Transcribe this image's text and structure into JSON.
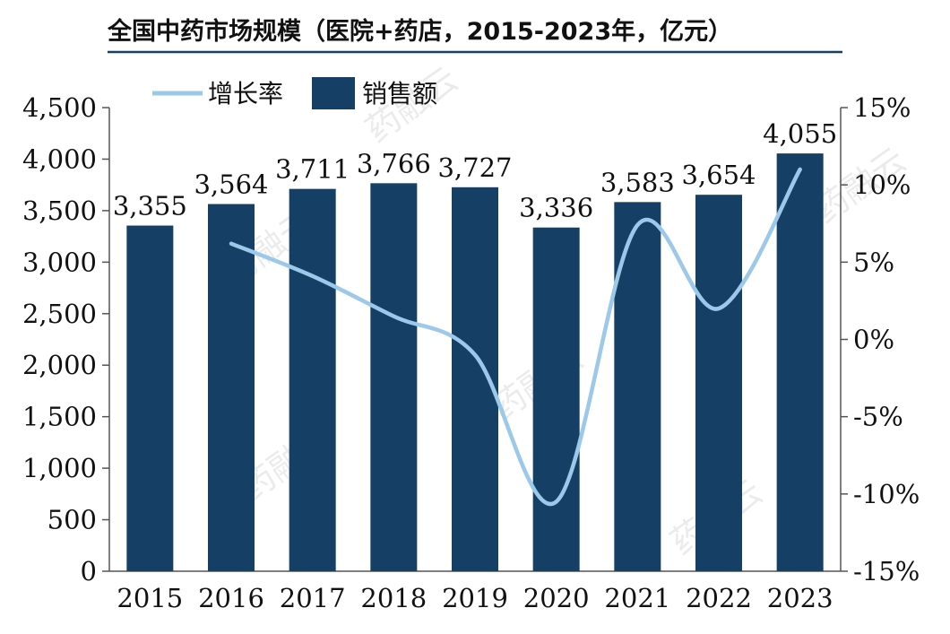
{
  "chart_data": {
    "type": "bar",
    "title": "全国中药市场规模（医院+药店，2015-2023年，亿元）",
    "categories": [
      "2015",
      "2016",
      "2017",
      "2018",
      "2019",
      "2020",
      "2021",
      "2022",
      "2023"
    ],
    "series": [
      {
        "name": "销售额",
        "type": "bar",
        "axis": "left",
        "values": [
          3355,
          3564,
          3711,
          3766,
          3727,
          3336,
          3583,
          3654,
          4055
        ],
        "labels": [
          "3,355",
          "3,564",
          "3,711",
          "3,766",
          "3,727",
          "3,336",
          "3,583",
          "3,654",
          "4,055"
        ],
        "color": "#163f66"
      },
      {
        "name": "增长率",
        "type": "line",
        "axis": "right",
        "values": [
          null,
          6.2,
          4.1,
          1.5,
          -1.0,
          -10.5,
          7.4,
          2.0,
          11.0
        ],
        "color": "#9cc8ea"
      }
    ],
    "y_left": {
      "range": [
        0,
        4500
      ],
      "ticks": [
        0,
        500,
        1000,
        1500,
        2000,
        2500,
        3000,
        3500,
        4000,
        4500
      ],
      "tick_labels": [
        "0",
        "500",
        "1,000",
        "1,500",
        "2,000",
        "2,500",
        "3,000",
        "3,500",
        "4,000",
        "4,500"
      ]
    },
    "y_right": {
      "range": [
        -15,
        15
      ],
      "ticks": [
        -15,
        -10,
        -5,
        0,
        5,
        10,
        15
      ],
      "tick_labels": [
        "-15%",
        "-10%",
        "-5%",
        "0%",
        "5%",
        "10%",
        "15%"
      ]
    },
    "legend_position": "top-left",
    "grid": false,
    "title_rule_color": "#163f66",
    "watermark_text": "药融云"
  }
}
